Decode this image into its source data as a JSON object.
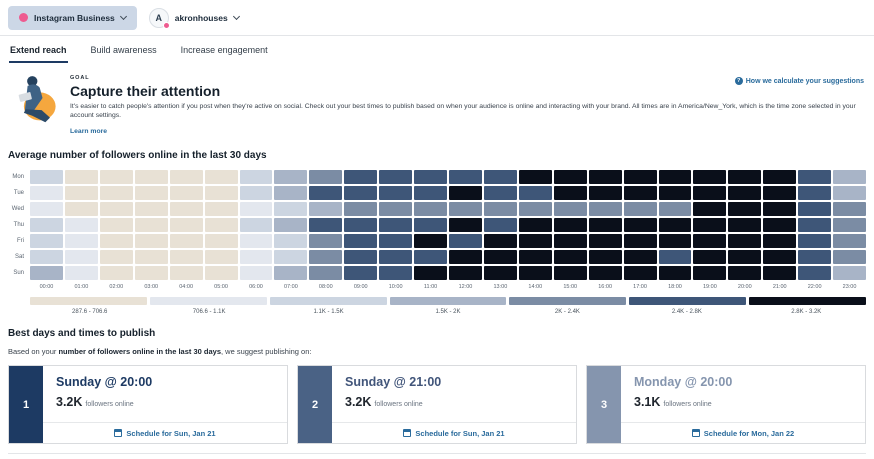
{
  "header": {
    "account_selector": {
      "label": "Instagram Business"
    },
    "profile": {
      "initial": "A",
      "name": "akronhouses"
    }
  },
  "tabs": [
    {
      "label": "Extend reach",
      "active": true
    },
    {
      "label": "Build awareness",
      "active": false
    },
    {
      "label": "Increase engagement",
      "active": false
    }
  ],
  "goal": {
    "eyebrow": "GOAL",
    "title": "Capture their attention",
    "description": "It's easier to catch people's attention if you post when they're active on social. Check out your best times to publish based on when your audience is online and interacting with your brand. All times are in America/New_York, which is the time zone selected in your account settings.",
    "learn_more_label": "Learn more",
    "help_link_label": "How we calculate your suggestions"
  },
  "chart_data": {
    "type": "heatmap",
    "title": "Average number of followers online in the last 30 days",
    "rows": [
      "Mon",
      "Tue",
      "Wed",
      "Thu",
      "Fri",
      "Sat",
      "Sun"
    ],
    "columns": [
      "00:00",
      "01:00",
      "02:00",
      "03:00",
      "04:00",
      "05:00",
      "06:00",
      "07:00",
      "08:00",
      "09:00",
      "10:00",
      "11:00",
      "12:00",
      "13:00",
      "14:00",
      "15:00",
      "16:00",
      "17:00",
      "18:00",
      "19:00",
      "20:00",
      "21:00",
      "22:00",
      "23:00"
    ],
    "legend": [
      {
        "label": "287.6 - 706.6",
        "color": "#e8e1d5"
      },
      {
        "label": "706.6 - 1.1K",
        "color": "#e3e7ee"
      },
      {
        "label": "1.1K - 1.5K",
        "color": "#ccd5e1"
      },
      {
        "label": "1.5K - 2K",
        "color": "#a8b4c7"
      },
      {
        "label": "2K - 2.4K",
        "color": "#7b8ca4"
      },
      {
        "label": "2.4K - 2.8K",
        "color": "#3e5678"
      },
      {
        "label": "2.8K - 3.2K",
        "color": "#0a0f1a"
      }
    ],
    "bucket_values": [
      [
        3,
        1,
        1,
        1,
        1,
        1,
        3,
        4,
        5,
        6,
        6,
        6,
        6,
        6,
        7,
        7,
        7,
        7,
        7,
        7,
        7,
        7,
        6,
        4
      ],
      [
        2,
        1,
        1,
        1,
        1,
        1,
        3,
        4,
        6,
        6,
        6,
        6,
        7,
        6,
        6,
        7,
        7,
        7,
        7,
        7,
        7,
        7,
        6,
        4
      ],
      [
        2,
        1,
        1,
        1,
        1,
        1,
        2,
        3,
        4,
        5,
        5,
        5,
        5,
        5,
        5,
        5,
        5,
        5,
        5,
        7,
        7,
        7,
        6,
        5
      ],
      [
        3,
        2,
        1,
        1,
        1,
        1,
        3,
        4,
        6,
        6,
        6,
        6,
        7,
        6,
        7,
        7,
        7,
        7,
        7,
        7,
        7,
        7,
        6,
        5
      ],
      [
        3,
        2,
        1,
        1,
        1,
        1,
        2,
        3,
        5,
        6,
        6,
        7,
        6,
        7,
        7,
        7,
        7,
        7,
        7,
        7,
        7,
        7,
        6,
        5
      ],
      [
        3,
        2,
        1,
        1,
        1,
        1,
        2,
        3,
        5,
        6,
        6,
        6,
        7,
        7,
        7,
        7,
        7,
        7,
        6,
        7,
        7,
        7,
        6,
        5
      ],
      [
        4,
        2,
        1,
        1,
        1,
        1,
        2,
        4,
        5,
        6,
        6,
        7,
        7,
        7,
        7,
        7,
        7,
        7,
        7,
        7,
        7,
        7,
        6,
        4
      ]
    ]
  },
  "best_times": {
    "title": "Best days and times to publish",
    "description_prefix": "Based on your ",
    "description_bold": "number of followers online in the last 30 days",
    "description_suffix": ", we suggest publishing on:",
    "cards": [
      {
        "rank": "1",
        "title": "Sunday @ 20:00",
        "value": "3.2K",
        "value_caption": "followers online",
        "cta": "Schedule for Sun, Jan 21",
        "accent": "#1d3a63",
        "title_color": "#1d3a63"
      },
      {
        "rank": "2",
        "title": "Sunday @ 21:00",
        "value": "3.2K",
        "value_caption": "followers online",
        "cta": "Schedule for Sun, Jan 21",
        "accent": "#4a6285",
        "title_color": "#41557a"
      },
      {
        "rank": "3",
        "title": "Monday @ 20:00",
        "value": "3.1K",
        "value_caption": "followers online",
        "cta": "Schedule for Mon, Jan 22",
        "accent": "#8595ae",
        "title_color": "#8595ae"
      }
    ]
  }
}
